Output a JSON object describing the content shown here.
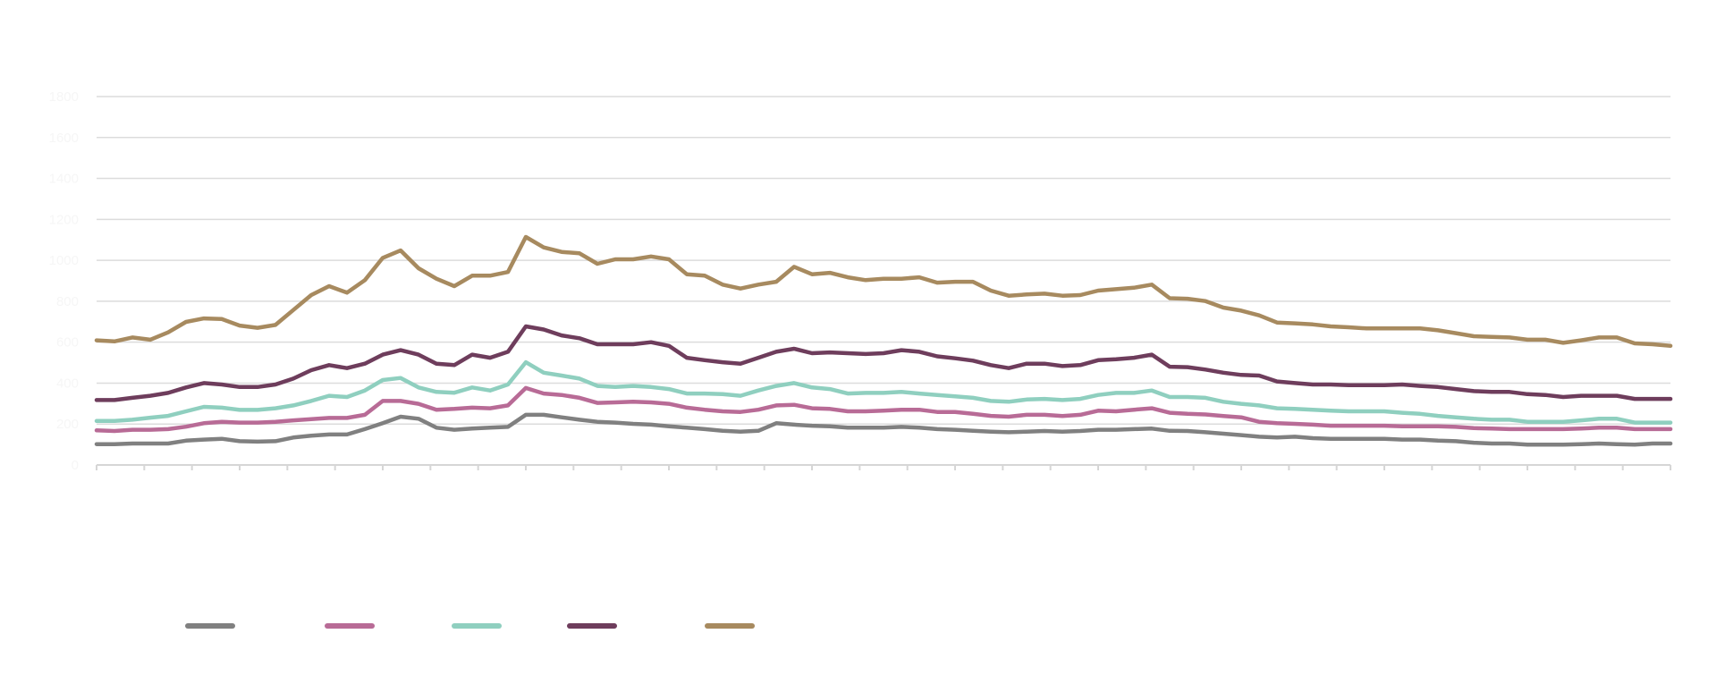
{
  "chart_data": {
    "type": "line",
    "title": "",
    "xlabel": "",
    "ylabel": "",
    "ylim": [
      0,
      1800
    ],
    "yticks": [
      "0",
      "200",
      "400",
      "600",
      "800",
      "1000",
      "1200",
      "1400",
      "1600",
      "1800"
    ],
    "grid": true,
    "legend_position": "bottom-left",
    "x_count": 89,
    "x_ticks_count": 34,
    "series": [
      {
        "key": "gray",
        "color": "#808080",
        "values": [
          102,
          102,
          105,
          105,
          105,
          119,
          124,
          128,
          116,
          114,
          116,
          134,
          143,
          149,
          149,
          175,
          204,
          236,
          226,
          182,
          172,
          178,
          182,
          186,
          245,
          245,
          233,
          221,
          211,
          207,
          201,
          197,
          189,
          182,
          175,
          167,
          163,
          167,
          204,
          197,
          192,
          189,
          182,
          182,
          182,
          186,
          182,
          175,
          172,
          167,
          163,
          160,
          163,
          166,
          163,
          166,
          172,
          172,
          175,
          178,
          167,
          166,
          160,
          153,
          146,
          138,
          134,
          138,
          131,
          128,
          128,
          128,
          128,
          124,
          124,
          119,
          116,
          109,
          105,
          105,
          99,
          99,
          99,
          102,
          105,
          102,
          99,
          105,
          105
        ]
      },
      {
        "key": "pink",
        "color": "#b86b96",
        "values": [
          169,
          166,
          172,
          172,
          175,
          187,
          204,
          211,
          207,
          207,
          211,
          218,
          224,
          230,
          230,
          245,
          313,
          313,
          299,
          270,
          274,
          280,
          277,
          291,
          376,
          349,
          342,
          328,
          303,
          306,
          309,
          306,
          299,
          280,
          270,
          262,
          259,
          270,
          291,
          294,
          277,
          274,
          262,
          262,
          265,
          270,
          270,
          259,
          259,
          250,
          240,
          236,
          245,
          245,
          239,
          245,
          265,
          262,
          270,
          277,
          255,
          250,
          247,
          239,
          233,
          211,
          204,
          201,
          197,
          192,
          192,
          192,
          192,
          189,
          189,
          189,
          186,
          180,
          178,
          175,
          175,
          175,
          175,
          178,
          182,
          182,
          175,
          175,
          175
        ]
      },
      {
        "key": "teal",
        "color": "#8fcfbf",
        "values": [
          215,
          215,
          221,
          231,
          240,
          262,
          284,
          280,
          269,
          269,
          277,
          291,
          313,
          338,
          332,
          364,
          415,
          425,
          379,
          357,
          353,
          379,
          364,
          393,
          502,
          451,
          437,
          422,
          386,
          381,
          386,
          381,
          371,
          349,
          349,
          346,
          338,
          364,
          386,
          400,
          379,
          371,
          349,
          352,
          352,
          357,
          349,
          342,
          335,
          328,
          313,
          309,
          320,
          323,
          317,
          323,
          342,
          352,
          352,
          364,
          332,
          332,
          328,
          309,
          299,
          291,
          277,
          274,
          270,
          265,
          262,
          262,
          262,
          255,
          250,
          240,
          233,
          226,
          221,
          221,
          211,
          211,
          211,
          218,
          226,
          226,
          207,
          207,
          207
        ]
      },
      {
        "key": "plum",
        "color": "#6e3d5c",
        "values": [
          317,
          317,
          328,
          338,
          352,
          379,
          400,
          393,
          381,
          381,
          393,
          422,
          463,
          488,
          473,
          495,
          539,
          561,
          539,
          495,
          488,
          539,
          524,
          553,
          677,
          662,
          633,
          619,
          590,
          590,
          590,
          600,
          582,
          524,
          512,
          502,
          495,
          524,
          553,
          568,
          546,
          550,
          546,
          542,
          546,
          561,
          553,
          531,
          521,
          510,
          488,
          473,
          495,
          495,
          483,
          488,
          512,
          517,
          524,
          539,
          480,
          478,
          466,
          451,
          440,
          437,
          408,
          400,
          393,
          393,
          390,
          390,
          390,
          393,
          386,
          381,
          371,
          361,
          357,
          357,
          346,
          342,
          332,
          338,
          338,
          338,
          323,
          323,
          323
        ]
      },
      {
        "key": "gold",
        "color": "#a78a5f",
        "values": [
          609,
          604,
          623,
          612,
          648,
          699,
          716,
          713,
          681,
          670,
          684,
          757,
          830,
          874,
          842,
          903,
          1012,
          1048,
          961,
          910,
          874,
          925,
          925,
          943,
          1114,
          1063,
          1041,
          1034,
          983,
          1005,
          1005,
          1019,
          1005,
          932,
          925,
          881,
          862,
          881,
          895,
          968,
          932,
          939,
          917,
          903,
          910,
          910,
          917,
          891,
          895,
          895,
          852,
          827,
          833,
          837,
          827,
          830,
          852,
          859,
          866,
          881,
          815,
          812,
          801,
          769,
          754,
          731,
          696,
          692,
          687,
          677,
          673,
          667,
          667,
          667,
          667,
          658,
          644,
          629,
          626,
          623,
          612,
          612,
          597,
          609,
          623,
          623,
          594,
          590,
          582
        ]
      }
    ]
  }
}
